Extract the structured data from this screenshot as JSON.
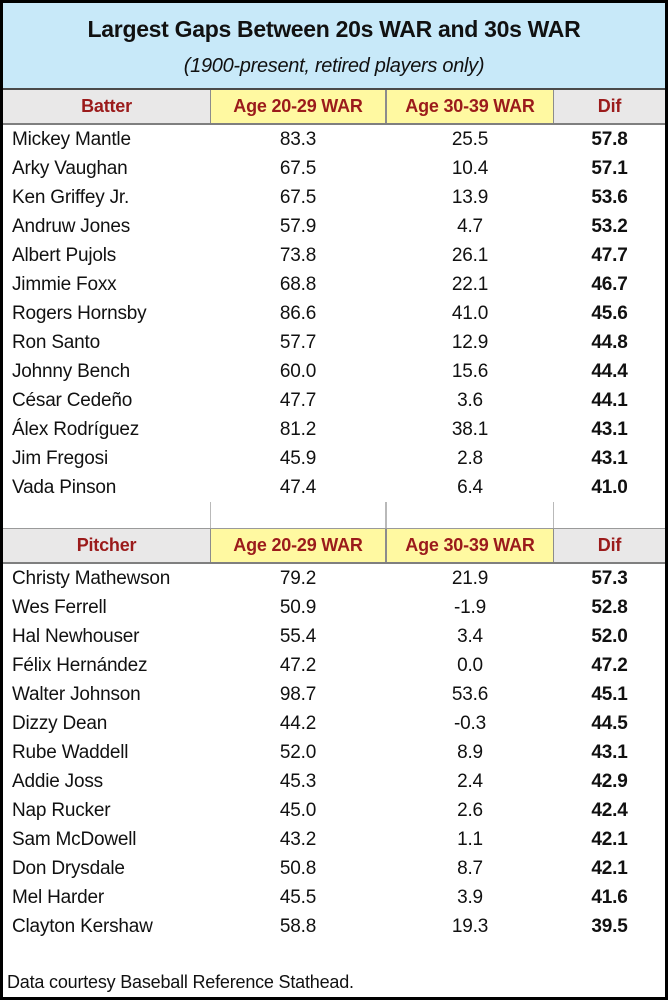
{
  "title": "Largest Gaps Between 20s WAR and 30s WAR",
  "subtitle": "(1900-present, retired players only)",
  "footer": "Data courtesy Baseball Reference Stathead.",
  "colors": {
    "title_band_bg": "#C8E9F9",
    "header_gray_bg": "#E9E8E8",
    "header_yellow_bg": "#FFF9A1",
    "header_text": "#9B1B1B",
    "outer_border": "#000000"
  },
  "chart_data": [
    {
      "type": "table",
      "title": "Largest Gaps Between 20s WAR and 30s WAR",
      "subtitle": "(1900-present, retired players only)",
      "columns": [
        "Batter",
        "Age 20-29 WAR",
        "Age 30-39 WAR",
        "Dif"
      ],
      "rows": [
        [
          "Mickey Mantle",
          "83.3",
          "25.5",
          "57.8"
        ],
        [
          "Arky Vaughan",
          "67.5",
          "10.4",
          "57.1"
        ],
        [
          "Ken Griffey Jr.",
          "67.5",
          "13.9",
          "53.6"
        ],
        [
          "Andruw Jones",
          "57.9",
          "4.7",
          "53.2"
        ],
        [
          "Albert Pujols",
          "73.8",
          "26.1",
          "47.7"
        ],
        [
          "Jimmie Foxx",
          "68.8",
          "22.1",
          "46.7"
        ],
        [
          "Rogers Hornsby",
          "86.6",
          "41.0",
          "45.6"
        ],
        [
          "Ron Santo",
          "57.7",
          "12.9",
          "44.8"
        ],
        [
          "Johnny Bench",
          "60.0",
          "15.6",
          "44.4"
        ],
        [
          "César Cedeño",
          "47.7",
          "3.6",
          "44.1"
        ],
        [
          "Álex Rodríguez",
          "81.2",
          "38.1",
          "43.1"
        ],
        [
          "Jim Fregosi",
          "45.9",
          "2.8",
          "43.1"
        ],
        [
          "Vada Pinson",
          "47.4",
          "6.4",
          "41.0"
        ]
      ]
    },
    {
      "type": "table",
      "columns": [
        "Pitcher",
        "Age 20-29 WAR",
        "Age 30-39 WAR",
        "Dif"
      ],
      "rows": [
        [
          "Christy Mathewson",
          "79.2",
          "21.9",
          "57.3"
        ],
        [
          "Wes Ferrell",
          "50.9",
          "-1.9",
          "52.8"
        ],
        [
          "Hal Newhouser",
          "55.4",
          "3.4",
          "52.0"
        ],
        [
          "Félix Hernández",
          "47.2",
          "0.0",
          "47.2"
        ],
        [
          "Walter Johnson",
          "98.7",
          "53.6",
          "45.1"
        ],
        [
          "Dizzy Dean",
          "44.2",
          "-0.3",
          "44.5"
        ],
        [
          "Rube Waddell",
          "52.0",
          "8.9",
          "43.1"
        ],
        [
          "Addie Joss",
          "45.3",
          "2.4",
          "42.9"
        ],
        [
          "Nap Rucker",
          "45.0",
          "2.6",
          "42.4"
        ],
        [
          "Sam McDowell",
          "43.2",
          "1.1",
          "42.1"
        ],
        [
          "Don Drysdale",
          "50.8",
          "8.7",
          "42.1"
        ],
        [
          "Mel Harder",
          "45.5",
          "3.9",
          "41.6"
        ],
        [
          "Clayton Kershaw",
          "58.8",
          "19.3",
          "39.5"
        ]
      ]
    }
  ]
}
